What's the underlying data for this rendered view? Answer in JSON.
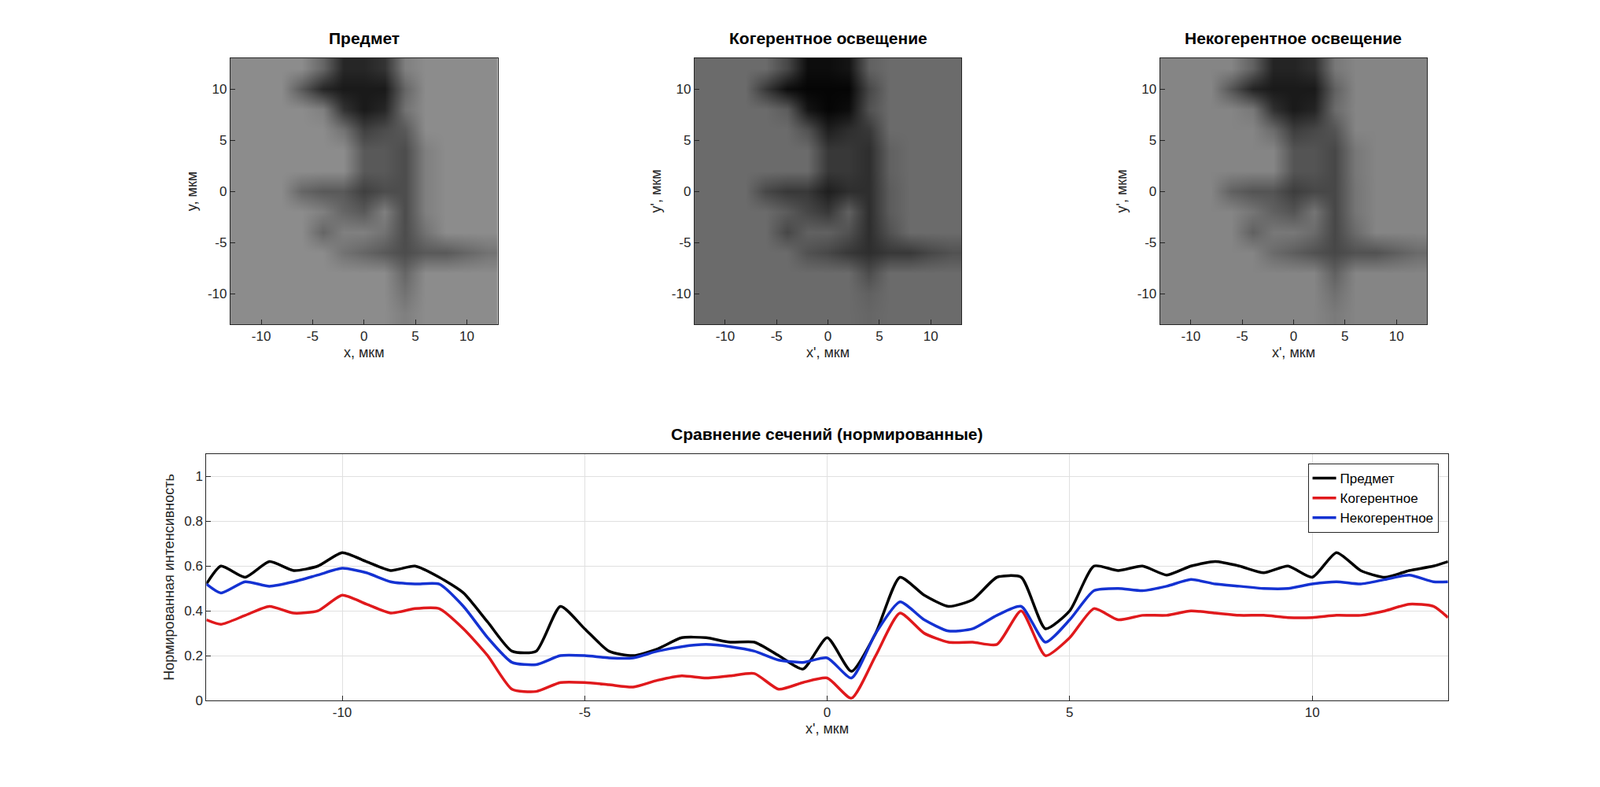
{
  "chart_data": [
    {
      "type": "heatmap",
      "title": "Предмет",
      "x_label": "x, мкм",
      "y_label": "y, мкм",
      "color": "gray",
      "grid": false,
      "xlim": [
        -13,
        13
      ],
      "ylim": [
        -13,
        13
      ],
      "xticks": [
        -10,
        -5,
        0,
        5,
        10
      ],
      "yticks": [
        -10,
        -5,
        0,
        5,
        10
      ],
      "zlim": [
        0,
        1
      ],
      "x": [
        -12,
        -10,
        -8,
        -6,
        -4,
        -2,
        0,
        2,
        4,
        6,
        8,
        10,
        12
      ],
      "y": [
        -12,
        -10,
        -8,
        -6,
        -4,
        -2,
        0,
        2,
        4,
        6,
        8,
        10,
        12
      ],
      "z": [
        [
          0.55,
          0.55,
          0.55,
          0.55,
          0.55,
          0.55,
          0.55,
          0.55,
          0.5,
          0.55,
          0.55,
          0.55,
          0.55
        ],
        [
          0.55,
          0.55,
          0.55,
          0.55,
          0.55,
          0.55,
          0.55,
          0.55,
          0.45,
          0.55,
          0.55,
          0.55,
          0.55
        ],
        [
          0.55,
          0.55,
          0.55,
          0.55,
          0.55,
          0.55,
          0.55,
          0.55,
          0.4,
          0.55,
          0.55,
          0.55,
          0.55
        ],
        [
          0.55,
          0.55,
          0.55,
          0.55,
          0.55,
          0.45,
          0.4,
          0.35,
          0.3,
          0.35,
          0.35,
          0.4,
          0.45
        ],
        [
          0.55,
          0.55,
          0.55,
          0.55,
          0.4,
          0.5,
          0.5,
          0.45,
          0.3,
          0.45,
          0.55,
          0.55,
          0.55
        ],
        [
          0.55,
          0.55,
          0.55,
          0.55,
          0.5,
          0.4,
          0.35,
          0.5,
          0.3,
          0.5,
          0.55,
          0.55,
          0.55
        ],
        [
          0.55,
          0.55,
          0.55,
          0.4,
          0.35,
          0.35,
          0.25,
          0.3,
          0.3,
          0.5,
          0.55,
          0.55,
          0.55
        ],
        [
          0.55,
          0.55,
          0.55,
          0.55,
          0.55,
          0.55,
          0.35,
          0.35,
          0.3,
          0.5,
          0.55,
          0.55,
          0.55
        ],
        [
          0.55,
          0.55,
          0.55,
          0.55,
          0.55,
          0.55,
          0.35,
          0.35,
          0.3,
          0.5,
          0.55,
          0.55,
          0.55
        ],
        [
          0.55,
          0.55,
          0.55,
          0.55,
          0.55,
          0.45,
          0.25,
          0.3,
          0.35,
          0.55,
          0.55,
          0.55,
          0.55
        ],
        [
          0.55,
          0.55,
          0.55,
          0.55,
          0.5,
          0.2,
          0.1,
          0.15,
          0.45,
          0.55,
          0.55,
          0.55,
          0.55
        ],
        [
          0.55,
          0.55,
          0.55,
          0.35,
          0.15,
          0.1,
          0.1,
          0.1,
          0.4,
          0.55,
          0.55,
          0.55,
          0.55
        ],
        [
          0.55,
          0.55,
          0.55,
          0.55,
          0.4,
          0.15,
          0.15,
          0.2,
          0.5,
          0.55,
          0.55,
          0.55,
          0.55
        ]
      ]
    },
    {
      "type": "heatmap",
      "title": "Когерентное освещение",
      "x_label": "x', мкм",
      "y_label": "y', мкм",
      "color": "gray",
      "grid": false,
      "xlim": [
        -13,
        13
      ],
      "ylim": [
        -13,
        13
      ],
      "xticks": [
        -10,
        -5,
        0,
        5,
        10
      ],
      "yticks": [
        -10,
        -5,
        0,
        5,
        10
      ],
      "zlim": [
        0,
        1
      ],
      "x": [
        -12,
        -10,
        -8,
        -6,
        -4,
        -2,
        0,
        2,
        4,
        6,
        8,
        10,
        12
      ],
      "y": [
        -12,
        -10,
        -8,
        -6,
        -4,
        -2,
        0,
        2,
        4,
        6,
        8,
        10,
        12
      ],
      "z": [
        [
          0.42,
          0.42,
          0.42,
          0.42,
          0.42,
          0.42,
          0.42,
          0.42,
          0.4,
          0.42,
          0.42,
          0.42,
          0.42
        ],
        [
          0.42,
          0.42,
          0.42,
          0.42,
          0.42,
          0.42,
          0.42,
          0.42,
          0.38,
          0.42,
          0.42,
          0.42,
          0.42
        ],
        [
          0.42,
          0.42,
          0.42,
          0.42,
          0.42,
          0.42,
          0.42,
          0.42,
          0.3,
          0.42,
          0.42,
          0.42,
          0.42
        ],
        [
          0.42,
          0.42,
          0.42,
          0.42,
          0.42,
          0.32,
          0.28,
          0.22,
          0.18,
          0.22,
          0.22,
          0.28,
          0.32
        ],
        [
          0.42,
          0.42,
          0.42,
          0.42,
          0.28,
          0.38,
          0.38,
          0.32,
          0.18,
          0.32,
          0.42,
          0.42,
          0.42
        ],
        [
          0.42,
          0.42,
          0.42,
          0.42,
          0.36,
          0.28,
          0.22,
          0.38,
          0.18,
          0.36,
          0.42,
          0.42,
          0.42
        ],
        [
          0.42,
          0.42,
          0.42,
          0.28,
          0.22,
          0.22,
          0.12,
          0.18,
          0.18,
          0.36,
          0.42,
          0.42,
          0.42
        ],
        [
          0.42,
          0.42,
          0.42,
          0.42,
          0.42,
          0.42,
          0.22,
          0.22,
          0.18,
          0.38,
          0.42,
          0.42,
          0.42
        ],
        [
          0.42,
          0.42,
          0.42,
          0.42,
          0.42,
          0.42,
          0.22,
          0.22,
          0.18,
          0.38,
          0.42,
          0.42,
          0.42
        ],
        [
          0.42,
          0.42,
          0.42,
          0.42,
          0.42,
          0.32,
          0.12,
          0.18,
          0.22,
          0.42,
          0.42,
          0.42,
          0.42
        ],
        [
          0.42,
          0.42,
          0.42,
          0.42,
          0.36,
          0.08,
          0.02,
          0.05,
          0.32,
          0.42,
          0.42,
          0.42,
          0.42
        ],
        [
          0.42,
          0.42,
          0.42,
          0.22,
          0.05,
          0.02,
          0.02,
          0.02,
          0.28,
          0.42,
          0.42,
          0.42,
          0.42
        ],
        [
          0.42,
          0.42,
          0.42,
          0.42,
          0.28,
          0.05,
          0.05,
          0.08,
          0.38,
          0.42,
          0.42,
          0.42,
          0.42
        ]
      ]
    },
    {
      "type": "heatmap",
      "title": "Некогерентное освещение",
      "x_label": "x', мкм",
      "y_label": "y', мкм",
      "color": "gray",
      "grid": false,
      "xlim": [
        -13,
        13
      ],
      "ylim": [
        -13,
        13
      ],
      "xticks": [
        -10,
        -5,
        0,
        5,
        10
      ],
      "yticks": [
        -10,
        -5,
        0,
        5,
        10
      ],
      "zlim": [
        0,
        1
      ],
      "x": [
        -12,
        -10,
        -8,
        -6,
        -4,
        -2,
        0,
        2,
        4,
        6,
        8,
        10,
        12
      ],
      "y": [
        -12,
        -10,
        -8,
        -6,
        -4,
        -2,
        0,
        2,
        4,
        6,
        8,
        10,
        12
      ],
      "z": [
        [
          0.52,
          0.52,
          0.52,
          0.52,
          0.52,
          0.52,
          0.52,
          0.52,
          0.48,
          0.52,
          0.52,
          0.52,
          0.52
        ],
        [
          0.52,
          0.52,
          0.52,
          0.52,
          0.52,
          0.52,
          0.52,
          0.52,
          0.44,
          0.52,
          0.52,
          0.52,
          0.52
        ],
        [
          0.52,
          0.52,
          0.52,
          0.52,
          0.52,
          0.52,
          0.52,
          0.52,
          0.38,
          0.52,
          0.52,
          0.52,
          0.52
        ],
        [
          0.52,
          0.52,
          0.52,
          0.52,
          0.52,
          0.42,
          0.37,
          0.32,
          0.28,
          0.32,
          0.32,
          0.37,
          0.42
        ],
        [
          0.52,
          0.52,
          0.52,
          0.52,
          0.38,
          0.47,
          0.47,
          0.42,
          0.28,
          0.42,
          0.52,
          0.52,
          0.52
        ],
        [
          0.52,
          0.52,
          0.52,
          0.52,
          0.46,
          0.38,
          0.33,
          0.46,
          0.28,
          0.46,
          0.52,
          0.52,
          0.52
        ],
        [
          0.52,
          0.52,
          0.52,
          0.38,
          0.33,
          0.33,
          0.24,
          0.28,
          0.28,
          0.46,
          0.52,
          0.52,
          0.52
        ],
        [
          0.52,
          0.52,
          0.52,
          0.52,
          0.52,
          0.52,
          0.33,
          0.33,
          0.28,
          0.47,
          0.52,
          0.52,
          0.52
        ],
        [
          0.52,
          0.52,
          0.52,
          0.52,
          0.52,
          0.52,
          0.33,
          0.33,
          0.28,
          0.47,
          0.52,
          0.52,
          0.52
        ],
        [
          0.52,
          0.52,
          0.52,
          0.52,
          0.52,
          0.42,
          0.24,
          0.28,
          0.33,
          0.52,
          0.52,
          0.52,
          0.52
        ],
        [
          0.52,
          0.52,
          0.52,
          0.52,
          0.47,
          0.19,
          0.1,
          0.14,
          0.42,
          0.52,
          0.52,
          0.52,
          0.52
        ],
        [
          0.52,
          0.52,
          0.52,
          0.33,
          0.14,
          0.1,
          0.1,
          0.1,
          0.38,
          0.52,
          0.52,
          0.52,
          0.52
        ],
        [
          0.52,
          0.52,
          0.52,
          0.52,
          0.38,
          0.14,
          0.14,
          0.19,
          0.47,
          0.52,
          0.52,
          0.52,
          0.52
        ]
      ]
    },
    {
      "type": "line",
      "title": "Сравнение сечений (нормированные)",
      "x_label": "x', мкм",
      "y_label": "Нормированная интенсивность",
      "grid": true,
      "legend": "top right",
      "xlim": [
        -12.8,
        12.8
      ],
      "ylim": [
        0,
        1.1
      ],
      "xticks": [
        -10,
        -5,
        0,
        5,
        10
      ],
      "yticks": [
        0,
        0.2,
        0.4,
        0.6,
        0.8,
        1
      ],
      "x": [
        -12.8,
        -12.5,
        -12,
        -11.5,
        -11,
        -10.5,
        -10,
        -9.5,
        -9,
        -8.5,
        -8,
        -7.5,
        -7,
        -6.5,
        -6,
        -5.5,
        -5,
        -4.5,
        -4,
        -3.5,
        -3,
        -2.5,
        -2,
        -1.5,
        -1,
        -0.5,
        0,
        0.5,
        1,
        1.5,
        2,
        2.5,
        3,
        3.5,
        4,
        4.5,
        5,
        5.5,
        6,
        6.5,
        7,
        7.5,
        8,
        8.5,
        9,
        9.5,
        10,
        10.5,
        11,
        11.5,
        12,
        12.5,
        12.8
      ],
      "series": [
        {
          "name": "Предмет",
          "color": "#000000",
          "values": [
            0.52,
            0.6,
            0.55,
            0.62,
            0.58,
            0.6,
            0.66,
            0.62,
            0.58,
            0.6,
            0.55,
            0.48,
            0.35,
            0.22,
            0.22,
            0.42,
            0.32,
            0.22,
            0.2,
            0.23,
            0.28,
            0.28,
            0.26,
            0.26,
            0.2,
            0.14,
            0.28,
            0.13,
            0.3,
            0.55,
            0.47,
            0.42,
            0.45,
            0.55,
            0.55,
            0.32,
            0.4,
            0.6,
            0.58,
            0.6,
            0.56,
            0.6,
            0.62,
            0.6,
            0.57,
            0.6,
            0.55,
            0.66,
            0.58,
            0.55,
            0.58,
            0.6,
            0.62
          ]
        },
        {
          "name": "Когерентное",
          "color": "#e0191c",
          "values": [
            0.36,
            0.34,
            0.38,
            0.42,
            0.39,
            0.4,
            0.47,
            0.43,
            0.39,
            0.41,
            0.41,
            0.32,
            0.2,
            0.05,
            0.04,
            0.08,
            0.08,
            0.07,
            0.06,
            0.09,
            0.11,
            0.1,
            0.11,
            0.12,
            0.05,
            0.08,
            0.1,
            0.01,
            0.2,
            0.39,
            0.3,
            0.26,
            0.26,
            0.25,
            0.4,
            0.2,
            0.28,
            0.41,
            0.36,
            0.38,
            0.38,
            0.4,
            0.39,
            0.38,
            0.38,
            0.37,
            0.37,
            0.38,
            0.38,
            0.4,
            0.43,
            0.42,
            0.37
          ]
        },
        {
          "name": "Некогерентное",
          "color": "#1432d2",
          "values": [
            0.52,
            0.48,
            0.53,
            0.51,
            0.53,
            0.56,
            0.59,
            0.57,
            0.53,
            0.52,
            0.52,
            0.42,
            0.28,
            0.17,
            0.16,
            0.2,
            0.2,
            0.19,
            0.19,
            0.22,
            0.24,
            0.25,
            0.24,
            0.22,
            0.18,
            0.17,
            0.19,
            0.1,
            0.3,
            0.44,
            0.36,
            0.31,
            0.32,
            0.38,
            0.42,
            0.26,
            0.36,
            0.49,
            0.5,
            0.49,
            0.51,
            0.54,
            0.52,
            0.51,
            0.5,
            0.5,
            0.52,
            0.53,
            0.52,
            0.54,
            0.56,
            0.53,
            0.53
          ]
        }
      ]
    }
  ]
}
